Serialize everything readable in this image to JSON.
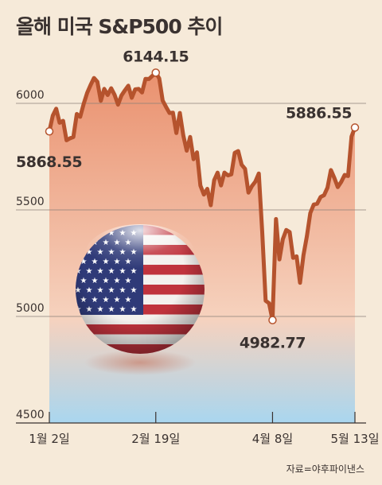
{
  "title": "올해 미국 S&P500 추이",
  "source": "자료=야후파이낸스",
  "colors": {
    "line": "#b5532d",
    "area_top": "#ea9270",
    "area_mid": "#f6d2be",
    "area_bottom": "#a9d6ef",
    "grid": "#8a7f78",
    "text": "#3a3230"
  },
  "chart_data": {
    "type": "line",
    "title": "올해 미국 S&P500 추이",
    "x_tick_labels": [
      "1월 2일",
      "2월 19일",
      "4월 8일",
      "5월 13일"
    ],
    "y_ticks": [
      4500,
      5000,
      5500,
      6000
    ],
    "ylim": [
      4500,
      6150
    ],
    "grid": "horizontal",
    "series": [
      {
        "x": [
          "2025-01-02",
          "2025-01-03",
          "2025-01-06",
          "2025-01-07",
          "2025-01-08",
          "2025-01-10",
          "2025-01-13",
          "2025-01-14",
          "2025-01-15",
          "2025-01-16",
          "2025-01-17",
          "2025-01-21",
          "2025-01-22",
          "2025-01-23",
          "2025-01-24",
          "2025-01-27",
          "2025-01-28",
          "2025-01-29",
          "2025-01-30",
          "2025-01-31",
          "2025-02-03",
          "2025-02-04",
          "2025-02-05",
          "2025-02-06",
          "2025-02-07",
          "2025-02-10",
          "2025-02-11",
          "2025-02-12",
          "2025-02-13",
          "2025-02-14",
          "2025-02-18",
          "2025-02-19",
          "2025-02-20",
          "2025-02-21",
          "2025-02-24",
          "2025-02-25",
          "2025-02-26",
          "2025-02-27",
          "2025-02-28",
          "2025-03-03",
          "2025-03-04",
          "2025-03-05",
          "2025-03-06",
          "2025-03-07",
          "2025-03-10",
          "2025-03-11",
          "2025-03-12",
          "2025-03-13",
          "2025-03-14",
          "2025-03-17",
          "2025-03-18",
          "2025-03-19",
          "2025-03-20",
          "2025-03-21",
          "2025-03-24",
          "2025-03-25",
          "2025-03-26",
          "2025-03-27",
          "2025-03-28",
          "2025-03-31",
          "2025-04-01",
          "2025-04-02",
          "2025-04-03",
          "2025-04-04",
          "2025-04-07",
          "2025-04-08",
          "2025-04-09",
          "2025-04-10",
          "2025-04-11",
          "2025-04-14",
          "2025-04-15",
          "2025-04-16",
          "2025-04-17",
          "2025-04-21",
          "2025-04-22",
          "2025-04-23",
          "2025-04-24",
          "2025-04-25",
          "2025-04-28",
          "2025-04-29",
          "2025-04-30",
          "2025-05-01",
          "2025-05-02",
          "2025-05-05",
          "2025-05-06",
          "2025-05-07",
          "2025-05-08",
          "2025-05-09",
          "2025-05-12",
          "2025-05-13"
        ],
        "values": [
          5868.55,
          5942,
          5975,
          5909,
          5918,
          5827,
          5836,
          5842,
          5950,
          5937,
          5997,
          6049,
          6086,
          6119,
          6101,
          6012,
          6068,
          6039,
          6071,
          6040,
          5994,
          6037,
          6061,
          6083,
          6026,
          6066,
          6068,
          6051,
          6115,
          6114,
          6129,
          6144.15,
          6117,
          6013,
          5983,
          5955,
          5956,
          5861,
          5955,
          5850,
          5778,
          5842,
          5738,
          5770,
          5614,
          5572,
          5599,
          5522,
          5639,
          5675,
          5615,
          5675,
          5662,
          5667,
          5768,
          5776,
          5712,
          5693,
          5581,
          5612,
          5633,
          5671,
          5396,
          5074,
          5062,
          4982.77,
          5457,
          5268,
          5363,
          5406,
          5396,
          5275,
          5282,
          5158,
          5287,
          5376,
          5485,
          5525,
          5529,
          5561,
          5569,
          5604,
          5687,
          5650,
          5607,
          5631,
          5664,
          5659,
          5844,
          5886.55
        ]
      }
    ],
    "annotations": [
      {
        "label": "5868.55",
        "x": "2025-01-02",
        "value": 5868.55,
        "anchor": "below-left"
      },
      {
        "label": "6144.15",
        "x": "2025-02-19",
        "value": 6144.15,
        "anchor": "above"
      },
      {
        "label": "4982.77",
        "x": "2025-04-08",
        "value": 4982.77,
        "anchor": "below"
      },
      {
        "label": "5886.55",
        "x": "2025-05-13",
        "value": 5886.55,
        "anchor": "above-left"
      }
    ]
  }
}
